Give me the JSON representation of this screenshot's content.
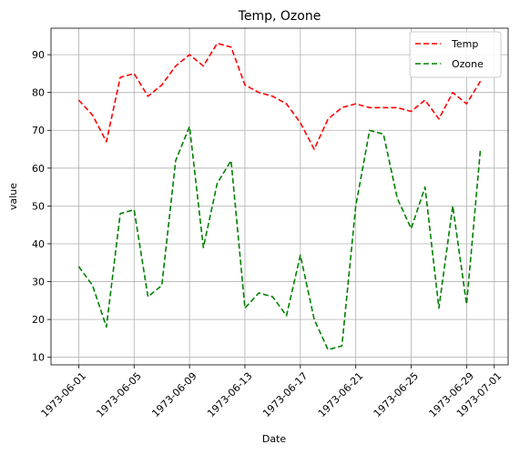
{
  "chart_data": {
    "type": "line",
    "title": "Temp, Ozone",
    "xlabel": "Date",
    "ylabel": "value",
    "x_start": "1973-06-01",
    "x_tick_labels": [
      "1973-06-01",
      "1973-06-05",
      "1973-06-09",
      "1973-06-13",
      "1973-06-17",
      "1973-06-21",
      "1973-06-25",
      "1973-06-29",
      "1973-07-01"
    ],
    "x_range": [
      "1973-05-30",
      "1973-07-02"
    ],
    "y_ticks": [
      10,
      20,
      30,
      40,
      50,
      60,
      70,
      80,
      90
    ],
    "ylim": [
      8,
      97
    ],
    "grid": true,
    "legend_position": "top-right",
    "x": [
      "1973-06-01",
      "1973-06-02",
      "1973-06-03",
      "1973-06-04",
      "1973-06-05",
      "1973-06-06",
      "1973-06-07",
      "1973-06-08",
      "1973-06-09",
      "1973-06-10",
      "1973-06-11",
      "1973-06-12",
      "1973-06-13",
      "1973-06-14",
      "1973-06-15",
      "1973-06-16",
      "1973-06-17",
      "1973-06-18",
      "1973-06-19",
      "1973-06-20",
      "1973-06-21",
      "1973-06-22",
      "1973-06-23",
      "1973-06-24",
      "1973-06-25",
      "1973-06-26",
      "1973-06-27",
      "1973-06-28",
      "1973-06-29",
      "1973-06-30"
    ],
    "series": [
      {
        "name": "Temp",
        "color": "#ff0000",
        "style": "dashed",
        "values": [
          78,
          74,
          67,
          84,
          85,
          79,
          82,
          87,
          90,
          87,
          93,
          92,
          82,
          80,
          79,
          77,
          72,
          65,
          73,
          76,
          77,
          76,
          76,
          76,
          75,
          78,
          73,
          80,
          77,
          83
        ]
      },
      {
        "name": "Ozone",
        "color": "#008000",
        "style": "dashed",
        "values": [
          34,
          29,
          18,
          48,
          49,
          26,
          29,
          62,
          71,
          39,
          56,
          62,
          23,
          27,
          26,
          21,
          37,
          20,
          12,
          13,
          50,
          70,
          69,
          52,
          44,
          55,
          23,
          50,
          24,
          65
        ]
      }
    ]
  }
}
